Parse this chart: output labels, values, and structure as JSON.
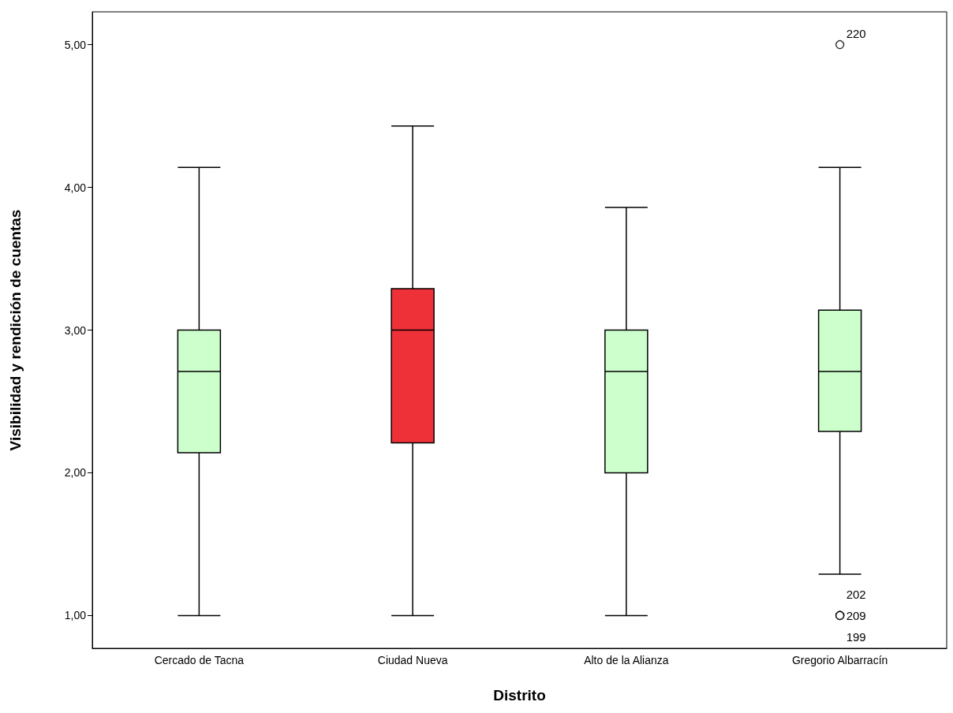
{
  "chart_data": {
    "type": "box",
    "xlabel": "Distrito",
    "ylabel": "Visibilidad y rendición de cuentas",
    "categories": [
      "Cercado de Tacna",
      "Ciudad Nueva",
      "Alto de la Alianza",
      "Gregorio Albarracín"
    ],
    "colors": [
      "#ccffcc",
      "#ee3039",
      "#ccffcc",
      "#ccffcc"
    ],
    "boxes": [
      {
        "low": 1.0,
        "q1": 2.14,
        "median": 2.71,
        "q3": 3.0,
        "high": 4.14
      },
      {
        "low": 1.0,
        "q1": 2.21,
        "median": 3.0,
        "q3": 3.29,
        "high": 4.43
      },
      {
        "low": 1.0,
        "q1": 2.0,
        "median": 2.71,
        "q3": 3.0,
        "high": 3.86
      },
      {
        "low": 1.29,
        "q1": 2.29,
        "median": 2.71,
        "q3": 3.14,
        "high": 4.14,
        "outliers": [
          5.0,
          1.0,
          1.0,
          1.0
        ]
      }
    ],
    "ylim": [
      0.77,
      5.23
    ],
    "yticks": [
      {
        "value": 1,
        "label": "1,00"
      },
      {
        "value": 2,
        "label": "2,00"
      },
      {
        "value": 3,
        "label": "3,00"
      },
      {
        "value": 4,
        "label": "4,00"
      },
      {
        "value": 5,
        "label": "5,00"
      }
    ],
    "grid": false,
    "annotations": [
      "220",
      "202",
      "209",
      "199"
    ]
  }
}
